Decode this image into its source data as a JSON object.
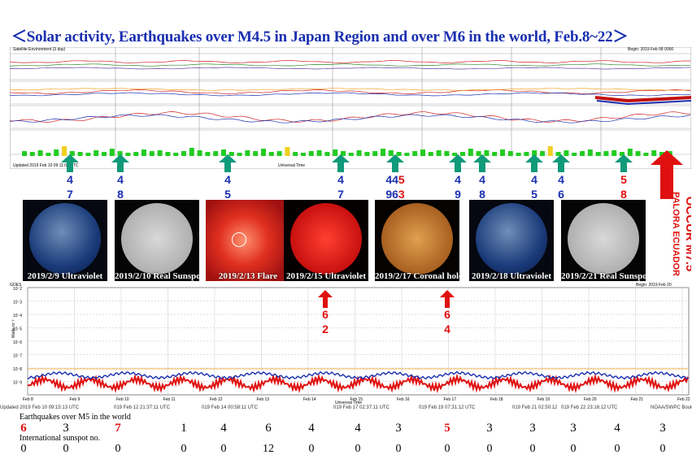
{
  "title": "＜Solar activity, Earthquakes over M4.5 in Japan Region and over M6 in the world, Feb.8~22＞",
  "top_panel": {
    "header": "Satellite Environment (3 day)",
    "begin_label": "Begin: 2019 Feb 08 0000",
    "footer_updated": "Updated 2019 Feb 10 09:11:02 UTC",
    "utc_label": "Universal Time",
    "bar_colors": {
      "quiet": "#22cc22",
      "active": "#f0d020"
    }
  },
  "arrows_japan": [
    {
      "top": "4",
      "bottom": "7"
    },
    {
      "top": "4",
      "bottom": "8"
    },
    {
      "top": "4",
      "bottom": "5"
    },
    {
      "top": "4",
      "bottom": "7"
    },
    {
      "top": "44",
      "top_red": "5",
      "bottom": "96",
      "bottom_red": "3"
    },
    {
      "top": "4",
      "bottom": "9"
    },
    {
      "top": "4",
      "bottom": "8"
    },
    {
      "top": "4",
      "bottom": "5"
    },
    {
      "top": "4",
      "bottom": "6"
    },
    {
      "top_red": "5",
      "bottom_red": "8"
    }
  ],
  "world_event": {
    "place": "PALORA ECUADOR",
    "text": "OCCUR M7.5"
  },
  "thumbnails": [
    {
      "caption": "2019/2/9 Ultraviolet",
      "kind": "uv"
    },
    {
      "caption": "2019/2/10 Real Sunspot",
      "kind": "gray"
    },
    {
      "caption": "2019/2/13 Flare",
      "kind": "flare"
    },
    {
      "caption": "2019/2/15 Ultraviolet",
      "kind": "red"
    },
    {
      "caption": "2019/2/17 Coronal hole",
      "kind": "orange"
    },
    {
      "caption": "2019/2/18 Ultraviolet",
      "kind": "uv"
    },
    {
      "caption": "2019/2/21 Real Sunspot",
      "kind": "gray"
    }
  ],
  "red_arrows": [
    {
      "top": "6",
      "bottom": "2"
    },
    {
      "top": "6",
      "bottom": "4"
    }
  ],
  "bottom_chart": {
    "header": "GOES",
    "begin_label": "Begin: 2019 Feb 20",
    "ylabel": "Watts m⁻²",
    "xlabel": "Universal Time",
    "ticks": [
      "Feb 8",
      "Feb 9",
      "Feb 10",
      "Feb 11",
      "Feb 12",
      "Feb 13",
      "Feb 14",
      "Feb 15",
      "Feb 16",
      "Feb 17",
      "Feb 18",
      "Feb 19",
      "Feb 20",
      "Feb 21",
      "Feb 22"
    ],
    "footer_updates": [
      "Updated 2019 Feb 10 09:15:13 UTC",
      "019 Feb 12 21:37:11 UTC",
      "019 Feb 14 00:58:11 UTC",
      "019 Feb 17 02:37:11 UTC",
      "019 Feb 19 07:31:12 UTC",
      "019 Feb 21 02:50:12",
      "019 Feb 22 23:16:12 UTC",
      "NOAA/SWPC Boulder"
    ],
    "colors": {
      "xray_short": "#e01010",
      "xray_long": "#1a2fb0",
      "threshold": "#f0a020"
    }
  },
  "earthquake_label": "Earthquakes over M5 in the world",
  "sunspot_label": "International sunspot no.",
  "chart_data": {
    "type": "table",
    "title": "Solar activity, Earthquakes over M4.5 in Japan Region and over M6 in the world, Feb.8~22",
    "categories": [
      "Feb 8",
      "Feb 9",
      "Feb 10",
      "Feb 11",
      "Feb 12",
      "Feb 13",
      "Feb 14",
      "Feb 15",
      "Feb 16",
      "Feb 17",
      "Feb 18",
      "Feb 19",
      "Feb 20",
      "Feb 21",
      "Feb 22"
    ],
    "series": [
      {
        "name": "Earthquakes over M5 in the world",
        "values": [
          6,
          3,
          7,
          1,
          4,
          6,
          4,
          4,
          3,
          5,
          3,
          3,
          3,
          4,
          3
        ],
        "highlight": [
          true,
          false,
          true,
          false,
          false,
          false,
          false,
          false,
          false,
          true,
          false,
          false,
          false,
          false,
          false
        ]
      },
      {
        "name": "International sunspot no.",
        "values": [
          0,
          0,
          0,
          0,
          0,
          12,
          0,
          0,
          0,
          0,
          0,
          0,
          0,
          0,
          0
        ]
      }
    ]
  }
}
